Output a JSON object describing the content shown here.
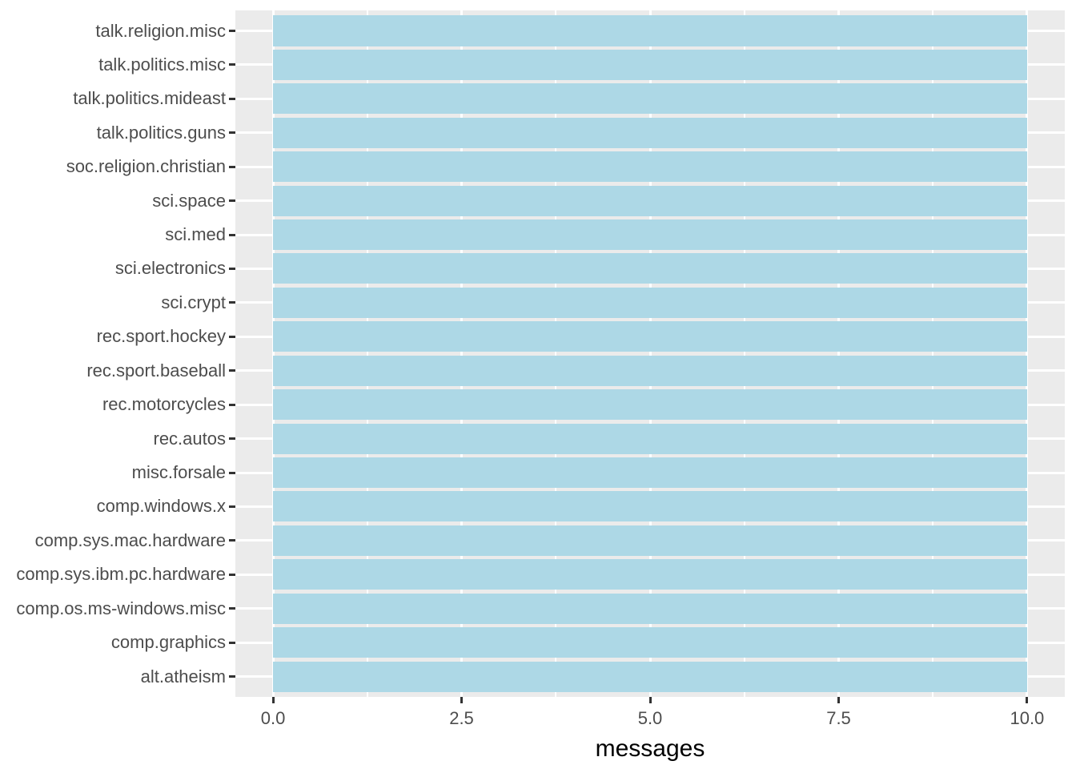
{
  "chart_data": {
    "type": "bar",
    "orientation": "horizontal",
    "title": "",
    "xlabel": "messages",
    "ylabel": "",
    "categories": [
      "talk.religion.misc",
      "talk.politics.misc",
      "talk.politics.mideast",
      "talk.politics.guns",
      "soc.religion.christian",
      "sci.space",
      "sci.med",
      "sci.electronics",
      "sci.crypt",
      "rec.sport.hockey",
      "rec.sport.baseball",
      "rec.motorcycles",
      "rec.autos",
      "misc.forsale",
      "comp.windows.x",
      "comp.sys.mac.hardware",
      "comp.sys.ibm.pc.hardware",
      "comp.os.ms-windows.misc",
      "comp.graphics",
      "alt.atheism"
    ],
    "values": [
      10,
      10,
      10,
      10,
      10,
      10,
      10,
      10,
      10,
      10,
      10,
      10,
      10,
      10,
      10,
      10,
      10,
      10,
      10,
      10
    ],
    "xlim": [
      -0.5,
      10.5
    ],
    "x_major_ticks": [
      0,
      2.5,
      5,
      7.5,
      10
    ],
    "x_tick_labels": [
      "0.0",
      "2.5",
      "5.0",
      "7.5",
      "10.0"
    ],
    "x_minor_ticks": [
      1.25,
      3.75,
      6.25,
      8.75
    ],
    "bar_fraction": 0.9,
    "grid": "major-and-minor-white-on-gray",
    "legend": false,
    "colors": {
      "bar_fill": "#ADD8E6",
      "panel_background": "#EBEBEB",
      "gridline": "#FFFFFF",
      "tick_mark": "#333333",
      "tick_label": "#4D4D4D",
      "axis_title": "#000000",
      "page_background": "#FFFFFF"
    }
  }
}
